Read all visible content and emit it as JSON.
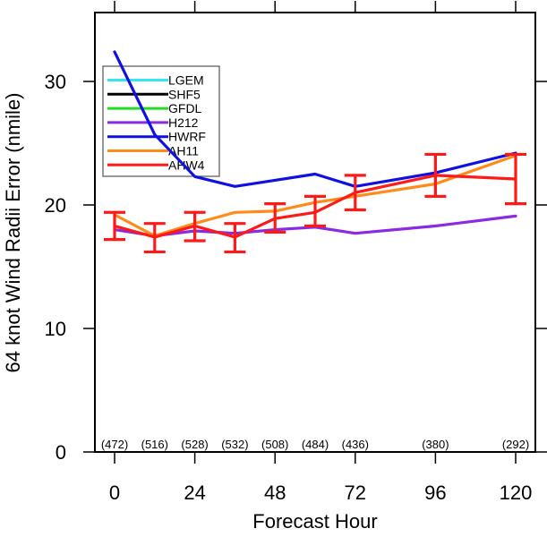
{
  "chart_data": {
    "type": "line",
    "title": "",
    "xlabel": "Forecast Hour",
    "ylabel": "64 knot Wind Radii Error (nmile)",
    "xlim": [
      -6,
      126
    ],
    "ylim": [
      0,
      35.6
    ],
    "x_ticks": [
      0,
      24,
      48,
      72,
      96,
      120
    ],
    "x_tick_labels": [
      "0",
      "24",
      "48",
      "72",
      "96",
      "120"
    ],
    "y_ticks": [
      0,
      10,
      20,
      30
    ],
    "y_tick_labels": [
      "0",
      "10",
      "20",
      "30"
    ],
    "grid": false,
    "legend_position": "top-left",
    "legend": [
      {
        "name": "LGEM",
        "color": "#33e6f2"
      },
      {
        "name": "SHF5",
        "color": "#000000"
      },
      {
        "name": "GFDL",
        "color": "#22dd22"
      },
      {
        "name": "H212",
        "color": "#8a2be2"
      },
      {
        "name": "HWRF",
        "color": "#1010e0"
      },
      {
        "name": "AH11",
        "color": "#ff8c1a"
      },
      {
        "name": "AHW4",
        "color": "#ff1a1a"
      }
    ],
    "series": [
      {
        "name": "H212",
        "color": "#8a2be2",
        "x": [
          0,
          12,
          24,
          36,
          48,
          60,
          72,
          96,
          120
        ],
        "y": [
          18.0,
          17.5,
          17.9,
          17.7,
          18.0,
          18.2,
          17.7,
          18.3,
          19.1
        ]
      },
      {
        "name": "HWRF",
        "color": "#1010e0",
        "x": [
          0,
          12,
          24,
          36,
          48,
          60,
          72,
          96,
          120
        ],
        "y": [
          32.4,
          25.7,
          22.3,
          21.5,
          22.0,
          22.5,
          21.5,
          22.6,
          24.2
        ]
      },
      {
        "name": "AH11",
        "color": "#ff8c1a",
        "x": [
          0,
          12,
          24,
          36,
          48,
          60,
          72,
          96,
          120
        ],
        "y": [
          19.2,
          17.5,
          18.5,
          19.4,
          19.5,
          20.2,
          20.7,
          21.7,
          24.0
        ]
      },
      {
        "name": "AHW4",
        "color": "#ff1a1a",
        "x": [
          0,
          12,
          24,
          36,
          48,
          60,
          72,
          96,
          120
        ],
        "y": [
          18.3,
          17.4,
          18.3,
          17.4,
          18.9,
          19.4,
          21.0,
          22.4,
          22.1
        ],
        "error_low": [
          17.2,
          16.2,
          17.1,
          16.2,
          17.8,
          18.3,
          19.6,
          20.7,
          20.1
        ],
        "error_high": [
          19.4,
          18.5,
          19.4,
          18.5,
          20.1,
          20.7,
          22.4,
          24.1,
          24.1
        ]
      }
    ],
    "sample_counts": {
      "x": [
        0,
        12,
        24,
        36,
        48,
        60,
        72,
        96,
        120
      ],
      "labels": [
        "(472)",
        "(516)",
        "(528)",
        "(532)",
        "(508)",
        "(484)",
        "(436)",
        "(380)",
        "(292)"
      ]
    }
  }
}
